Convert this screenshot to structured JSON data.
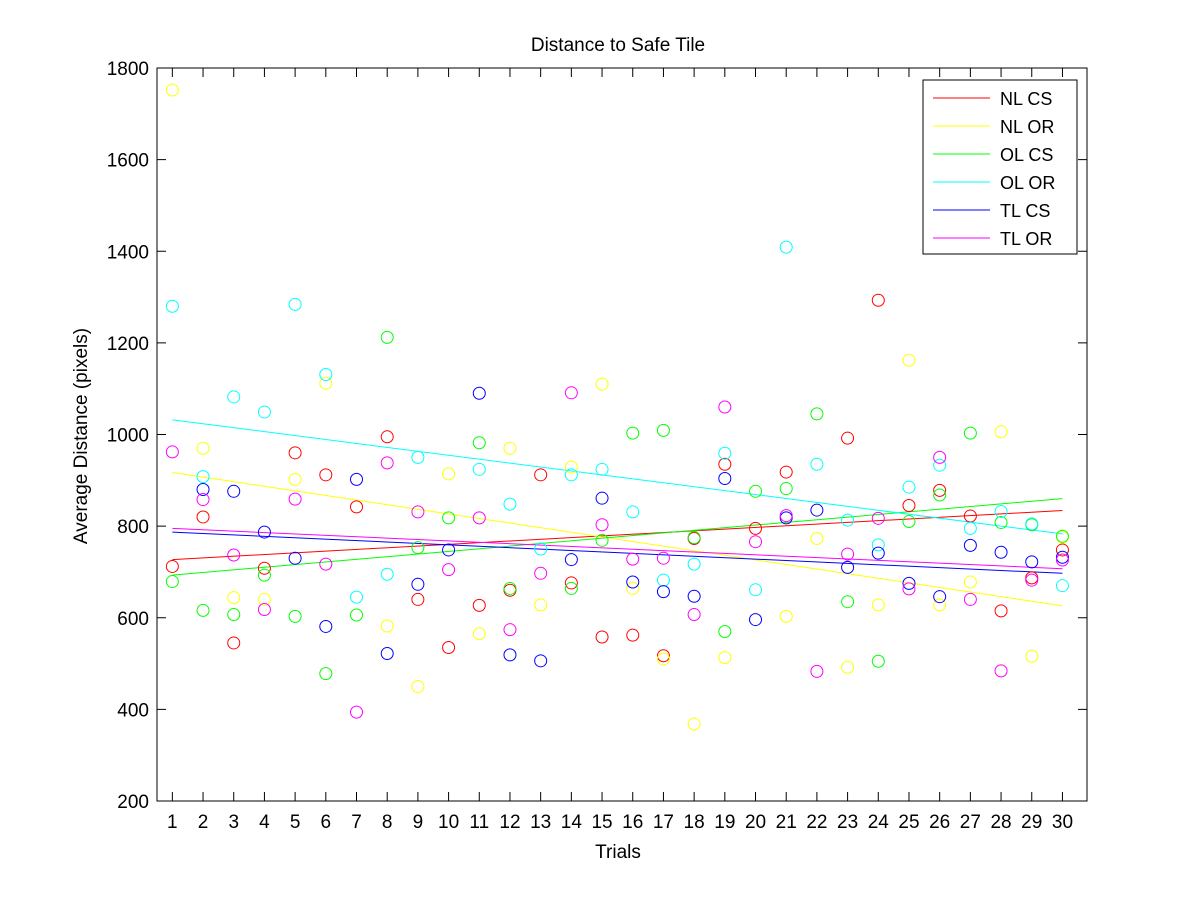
{
  "chart_data": {
    "type": "scatter",
    "title": "Distance to Safe Tile",
    "xlabel": "Trials",
    "ylabel": "Average Distance (pixels)",
    "xlim": [
      0.5,
      30.8
    ],
    "ylim": [
      200,
      1800
    ],
    "x_ticks": [
      1,
      2,
      3,
      4,
      5,
      6,
      7,
      8,
      9,
      10,
      11,
      12,
      13,
      14,
      15,
      16,
      17,
      18,
      19,
      20,
      21,
      22,
      23,
      24,
      25,
      26,
      27,
      28,
      29,
      30
    ],
    "y_ticks": [
      200,
      400,
      600,
      800,
      1000,
      1200,
      1400,
      1600,
      1800
    ],
    "grid": false,
    "legend_position": "top-right",
    "marker": "open-circle",
    "series": [
      {
        "name": "NL CS",
        "color": "#ff0000",
        "values": [
          712,
          820,
          545,
          708,
          960,
          912,
          842,
          995,
          640,
          535,
          627,
          660,
          912,
          676,
          558,
          562,
          517,
          773,
          935,
          795,
          918,
          null,
          992,
          1293,
          845,
          878,
          822,
          615,
          687,
          748
        ],
        "trend": [
          727,
          834
        ]
      },
      {
        "name": "NL OR",
        "color": "#ffff00",
        "values": [
          1752,
          970,
          644,
          640,
          902,
          1112,
          null,
          582,
          450,
          914,
          565,
          970,
          628,
          929,
          1110,
          664,
          510,
          368,
          513,
          null,
          603,
          773,
          492,
          628,
          1162,
          628,
          678,
          1006,
          516,
          776
        ],
        "trend": [
          917,
          626
        ]
      },
      {
        "name": "OL CS",
        "color": "#00ff00",
        "values": [
          679,
          616,
          607,
          693,
          603,
          478,
          606,
          1212,
          753,
          818,
          982,
          664,
          null,
          664,
          769,
          1003,
          1009,
          775,
          570,
          876,
          882,
          1045,
          635,
          505,
          810,
          868,
          1003,
          808,
          803,
          778
        ],
        "trend": [
          693,
          860
        ]
      },
      {
        "name": "OL OR",
        "color": "#00ffff",
        "values": [
          1280,
          908,
          1082,
          1049,
          1284,
          1131,
          645,
          695,
          950,
          null,
          924,
          848,
          750,
          912,
          924,
          831,
          682,
          717,
          959,
          661,
          1409,
          935,
          813,
          759,
          885,
          933,
          795,
          832,
          805,
          670
        ],
        "trend": [
          1032,
          783
        ]
      },
      {
        "name": "TL CS",
        "color": "#0000ff",
        "values": [
          null,
          880,
          876,
          787,
          730,
          581,
          902,
          522,
          673,
          748,
          1090,
          519,
          506,
          727,
          861,
          678,
          657,
          647,
          904,
          596,
          818,
          835,
          710,
          741,
          675,
          646,
          758,
          743,
          722,
          732
        ],
        "trend": [
          787,
          697
        ]
      },
      {
        "name": "TL OR",
        "color": "#ff00ff",
        "values": [
          962,
          858,
          737,
          618,
          859,
          717,
          394,
          938,
          831,
          705,
          818,
          574,
          697,
          1091,
          803,
          728,
          730,
          607,
          1060,
          766,
          823,
          483,
          739,
          817,
          663,
          950,
          640,
          484,
          682,
          726
        ],
        "trend": [
          795,
          707
        ]
      }
    ]
  }
}
